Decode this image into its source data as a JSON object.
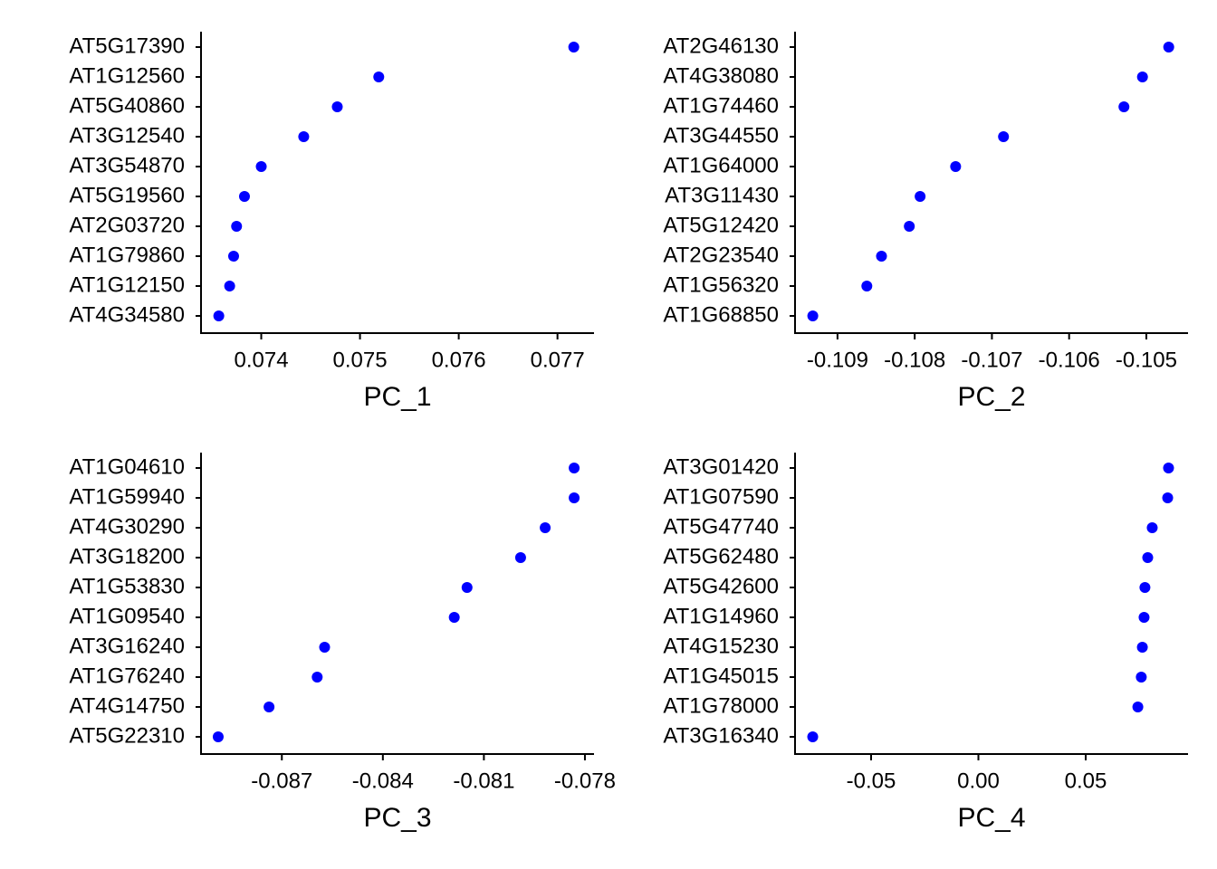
{
  "chart_data": [
    {
      "type": "scatter",
      "xlabel": "PC_1",
      "color": "#0000ff",
      "categories": [
        "AT5G17390",
        "AT1G12560",
        "AT5G40860",
        "AT3G12540",
        "AT3G54870",
        "AT5G19560",
        "AT2G03720",
        "AT1G79860",
        "AT1G12150",
        "AT4G34580"
      ],
      "values": [
        0.077165,
        0.07519,
        0.07477,
        0.07443,
        0.074,
        0.07383,
        0.07375,
        0.07372,
        0.07368,
        0.07357
      ],
      "xlim": [
        0.07339,
        0.07737
      ],
      "xticks": [
        0.074,
        0.075,
        0.076,
        0.077
      ]
    },
    {
      "type": "scatter",
      "xlabel": "PC_2",
      "color": "#0000ff",
      "categories": [
        "AT2G46130",
        "AT4G38080",
        "AT1G74460",
        "AT3G44550",
        "AT1G64000",
        "AT3G11430",
        "AT5G12420",
        "AT2G23540",
        "AT1G56320",
        "AT1G68850"
      ],
      "values": [
        -0.10471,
        -0.10505,
        -0.10529,
        -0.10685,
        -0.10747,
        -0.10793,
        -0.10807,
        -0.10843,
        -0.10862,
        -0.10932
      ],
      "xlim": [
        -0.10955,
        -0.10446
      ],
      "xticks": [
        -0.109,
        -0.108,
        -0.107,
        -0.106,
        -0.105
      ]
    },
    {
      "type": "scatter",
      "xlabel": "PC_3",
      "color": "#0000ff",
      "categories": [
        "AT1G04610",
        "AT1G59940",
        "AT4G30290",
        "AT3G18200",
        "AT1G53830",
        "AT1G09540",
        "AT3G16240",
        "AT1G76240",
        "AT4G14750",
        "AT5G22310"
      ],
      "values": [
        -0.07832,
        -0.07832,
        -0.07918,
        -0.07991,
        -0.0815,
        -0.08188,
        -0.08573,
        -0.08595,
        -0.08738,
        -0.08889
      ],
      "xlim": [
        -0.0894,
        -0.07773
      ],
      "xticks": [
        -0.087,
        -0.084,
        -0.081,
        -0.078
      ]
    },
    {
      "type": "scatter",
      "xlabel": "PC_4",
      "color": "#0000ff",
      "categories": [
        "AT3G01420",
        "AT1G07590",
        "AT5G47740",
        "AT5G62480",
        "AT5G42600",
        "AT1G14960",
        "AT4G15230",
        "AT1G45015",
        "AT1G78000",
        "AT3G16340"
      ],
      "values": [
        0.0886,
        0.0882,
        0.081,
        0.0789,
        0.0776,
        0.0772,
        0.0764,
        0.0759,
        0.0743,
        -0.0772
      ],
      "xlim": [
        -0.08544,
        0.09768
      ],
      "xticks": [
        -0.05,
        {
          "value": 0,
          "label": "0.00"
        },
        {
          "value": 0.05,
          "label": "0.05"
        }
      ]
    }
  ]
}
